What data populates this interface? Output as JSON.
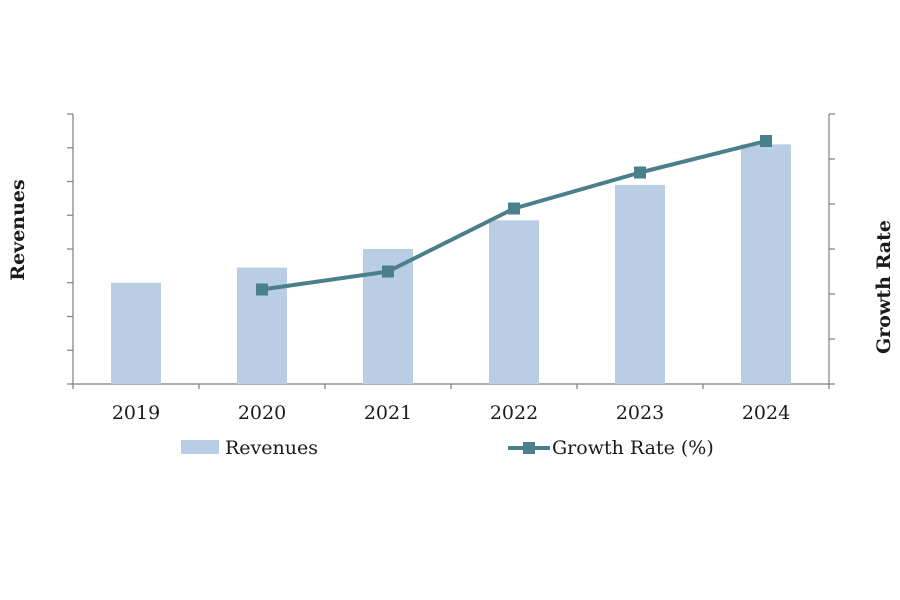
{
  "chart_data": {
    "type": "bar",
    "categories": [
      "2019",
      "2020",
      "2021",
      "2022",
      "2023",
      "2024"
    ],
    "series": [
      {
        "name": "Revenues",
        "kind": "bar",
        "axis": "left",
        "color": "#b9cde4",
        "values": [
          30,
          34.5,
          40,
          48.5,
          59,
          71
        ]
      },
      {
        "name": "Growth Rate (%)",
        "kind": "line",
        "axis": "right",
        "marker": "square",
        "color": "#4a7f8c",
        "values": [
          null,
          2.1,
          2.5,
          3.9,
          4.7,
          5.4
        ]
      }
    ],
    "ylabel": "Revenues",
    "y2label": "Growth Rate",
    "ylim": [
      0,
      80
    ],
    "y2lim": [
      0,
      6
    ],
    "y_tick_count": 9,
    "y2_tick_count": 7,
    "y_tick_labels_shown": false,
    "legend": "bottom",
    "grid": false
  }
}
